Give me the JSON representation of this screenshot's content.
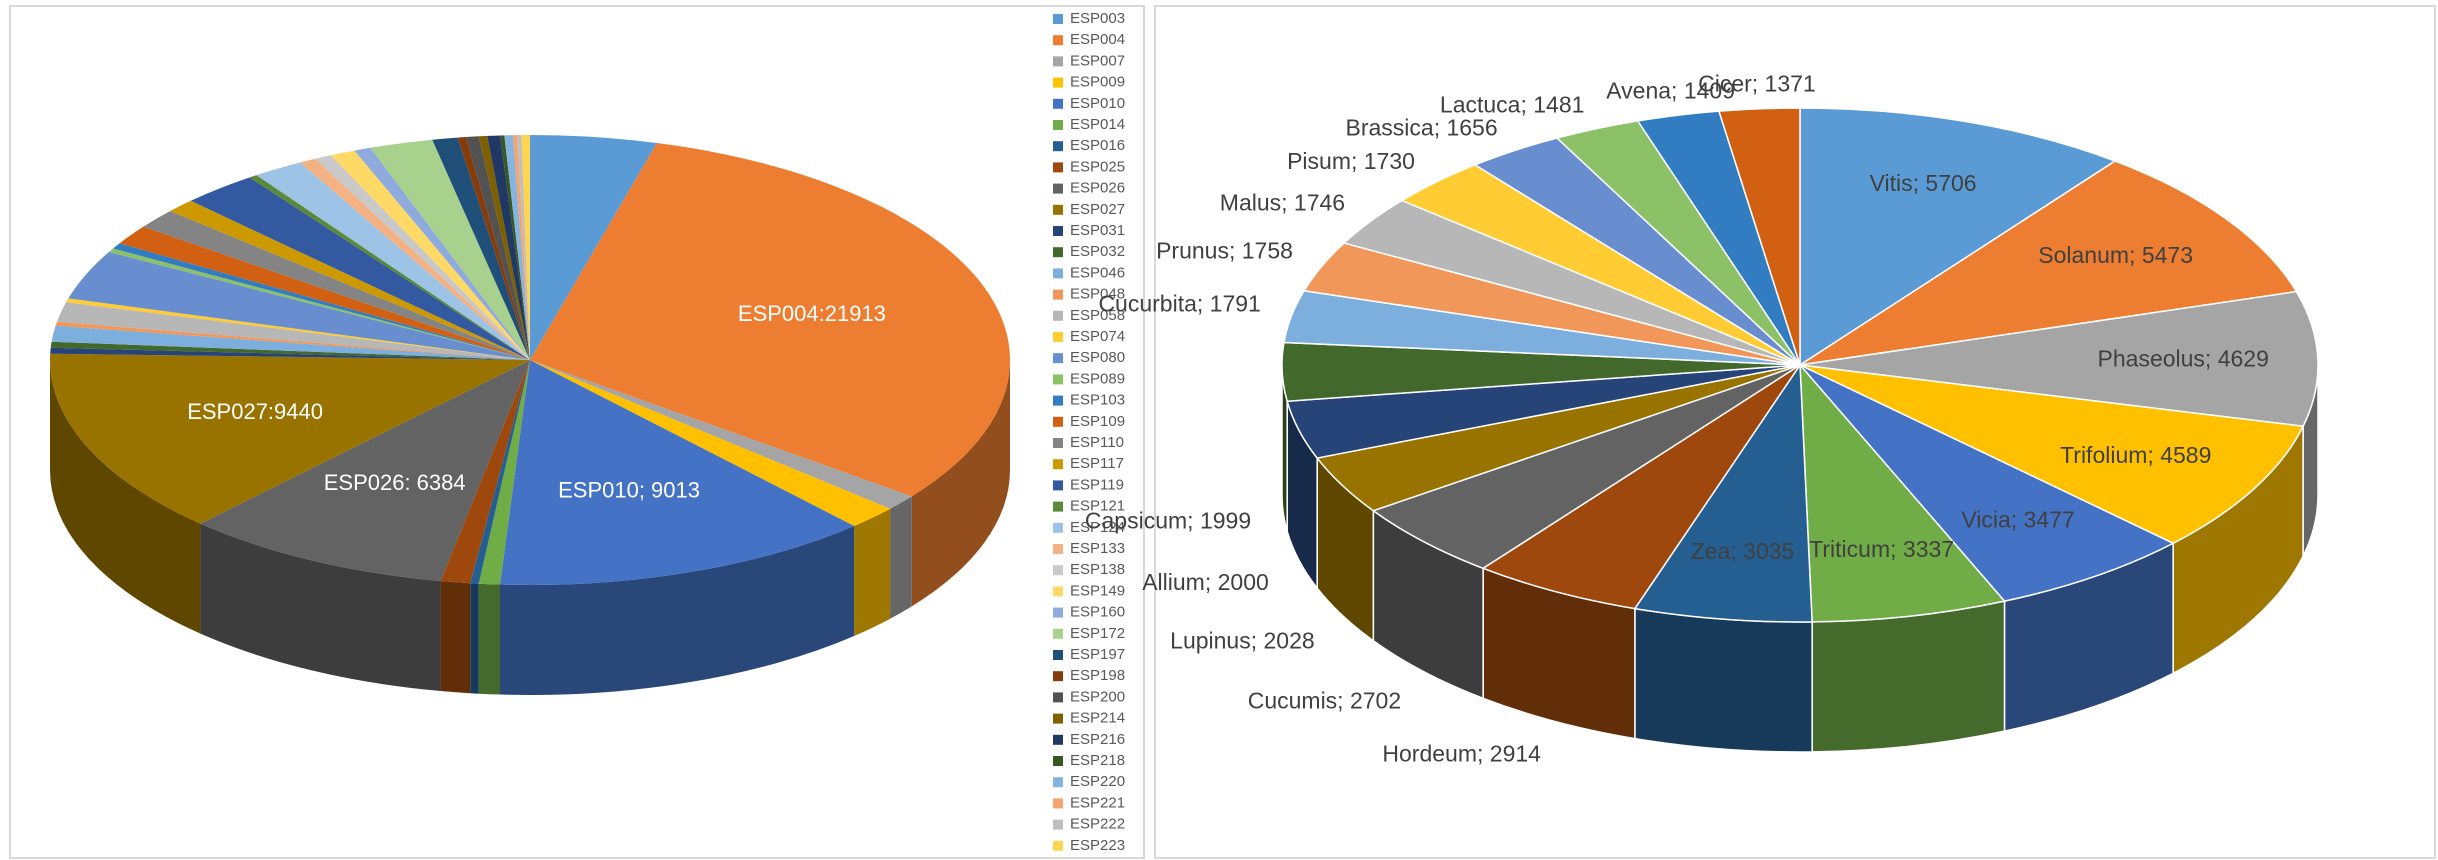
{
  "chart_data": [
    {
      "type": "pie3d",
      "legend": "right",
      "categories": [
        "ESP003",
        "ESP004",
        "ESP007",
        "ESP009",
        "ESP010",
        "ESP014",
        "ESP016",
        "ESP025",
        "ESP026",
        "ESP027",
        "ESP031",
        "ESP032",
        "ESP046",
        "ESP048",
        "ESP058",
        "ESP074",
        "ESP080",
        "ESP089",
        "ESP103",
        "ESP109",
        "ESP110",
        "ESP117",
        "ESP119",
        "ESP121",
        "ESP124",
        "ESP133",
        "ESP138",
        "ESP149",
        "ESP160",
        "ESP172",
        "ESP197",
        "ESP198",
        "ESP200",
        "ESP214",
        "ESP216",
        "ESP218",
        "ESP220",
        "ESP221",
        "ESP222",
        "ESP223"
      ],
      "values": [
        3000,
        21913,
        800,
        1200,
        9013,
        500,
        200,
        700,
        6384,
        9440,
        300,
        300,
        800,
        200,
        1000,
        200,
        2500,
        200,
        300,
        1000,
        1000,
        700,
        1800,
        200,
        1200,
        400,
        400,
        600,
        400,
        1500,
        600,
        200,
        300,
        200,
        300,
        100,
        200,
        100,
        100,
        200
      ],
      "value_labels": [
        null,
        "ESP004:21913",
        null,
        null,
        "ESP010; 9013",
        null,
        null,
        null,
        "ESP026: 6384",
        "ESP027:9440",
        null,
        null,
        null,
        null,
        null,
        null,
        null,
        null,
        null,
        null,
        null,
        null,
        null,
        null,
        null,
        null,
        null,
        null,
        null,
        null,
        null,
        null,
        null,
        null,
        null,
        null,
        null,
        null,
        null,
        null
      ],
      "colors": [
        "#5b9bd5",
        "#ed7d31",
        "#a5a5a5",
        "#ffc000",
        "#4472c4",
        "#70ad47",
        "#255e91",
        "#9e480e",
        "#636363",
        "#997300",
        "#264478",
        "#43682b",
        "#7cafdd",
        "#f1975a",
        "#b7b7b7",
        "#ffcd33",
        "#698ed0",
        "#8cc168",
        "#327dc2",
        "#d26012",
        "#848484",
        "#cc9a00",
        "#335aa1",
        "#5a8a39",
        "#9dc3e6",
        "#f4b183",
        "#c9c9c9",
        "#ffd966",
        "#8faadc",
        "#a9d18e",
        "#1f4e79",
        "#843c0c",
        "#525252",
        "#7f6000",
        "#203864",
        "#385723",
        "#85b4e0",
        "#f3a46f",
        "#bfbfbf",
        "#ffd54f"
      ]
    },
    {
      "type": "pie3d",
      "categories": [
        "Vitis",
        "Solanum",
        "Phaseolus",
        "Trifolium",
        "Vicia",
        "Triticum",
        "Zea",
        "Hordeum",
        "Cucumis",
        "Lupinus",
        "Allium",
        "Capsicum",
        "Cucurbita",
        "Prunus",
        "Malus",
        "Pisum",
        "Brassica",
        "Lactuca",
        "Avena",
        "Cicer"
      ],
      "values": [
        5706,
        5473,
        4629,
        4589,
        3477,
        3337,
        3035,
        2914,
        2702,
        2028,
        2000,
        1999,
        1791,
        1758,
        1746,
        1730,
        1656,
        1481,
        1409,
        1371
      ],
      "value_labels": [
        "Vitis; 5706",
        "Solanum; 5473",
        "Phaseolus; 4629",
        "Trifolium; 4589",
        "Vicia; 3477",
        "Triticum; 3337",
        "Zea; 3035",
        "Hordeum; 2914",
        "Cucumis; 2702",
        "Lupinus; 2028",
        "Allium; 2000",
        "Capsicum; 1999",
        "Cucurbita; 1791",
        "Prunus; 1758",
        "Malus; 1746",
        "Pisum; 1730",
        "Brassica; 1656",
        "Lactuca; 1481",
        "Avena; 1409",
        "Cicer; 1371"
      ],
      "colors": [
        "#5b9bd5",
        "#ed7d31",
        "#a5a5a5",
        "#ffc000",
        "#4472c4",
        "#70ad47",
        "#255e91",
        "#9e480e",
        "#636363",
        "#997300",
        "#264478",
        "#43682b",
        "#7cafdd",
        "#f1975a",
        "#b7b7b7",
        "#ffcd33",
        "#698ed0",
        "#8cc168",
        "#327dc2",
        "#d26012"
      ]
    }
  ]
}
